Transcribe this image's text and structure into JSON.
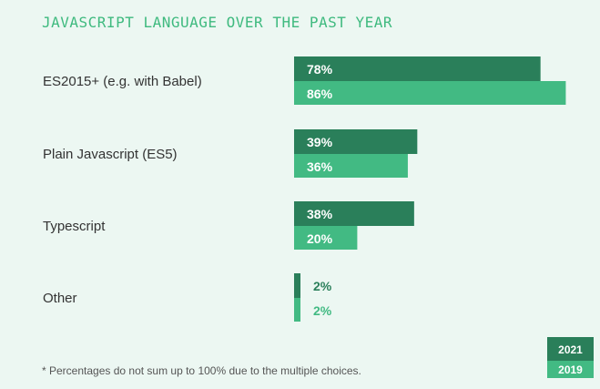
{
  "chart_data": {
    "type": "bar",
    "orientation": "horizontal",
    "title": "JAVASCRIPT LANGUAGE OVER THE PAST YEAR",
    "categories": [
      "ES2015+ (e.g. with Babel)",
      "Plain Javascript (ES5)",
      "Typescript",
      "Other"
    ],
    "series": [
      {
        "name": "2021",
        "values": [
          78,
          39,
          38,
          2
        ],
        "labels": [
          "78%",
          "39%",
          "38%",
          "2%"
        ],
        "color": "#2a7f5a"
      },
      {
        "name": "2019",
        "values": [
          86,
          36,
          20,
          2
        ],
        "labels": [
          "86%",
          "36%",
          "20%",
          "2%"
        ],
        "color": "#42ba83"
      }
    ],
    "xlim": [
      0,
      100
    ],
    "xlabel": "",
    "ylabel": "",
    "grid": false,
    "legend_position": "bottom-right"
  },
  "footnote": "* Percentages do not sum up to 100% due to the multiple choices."
}
